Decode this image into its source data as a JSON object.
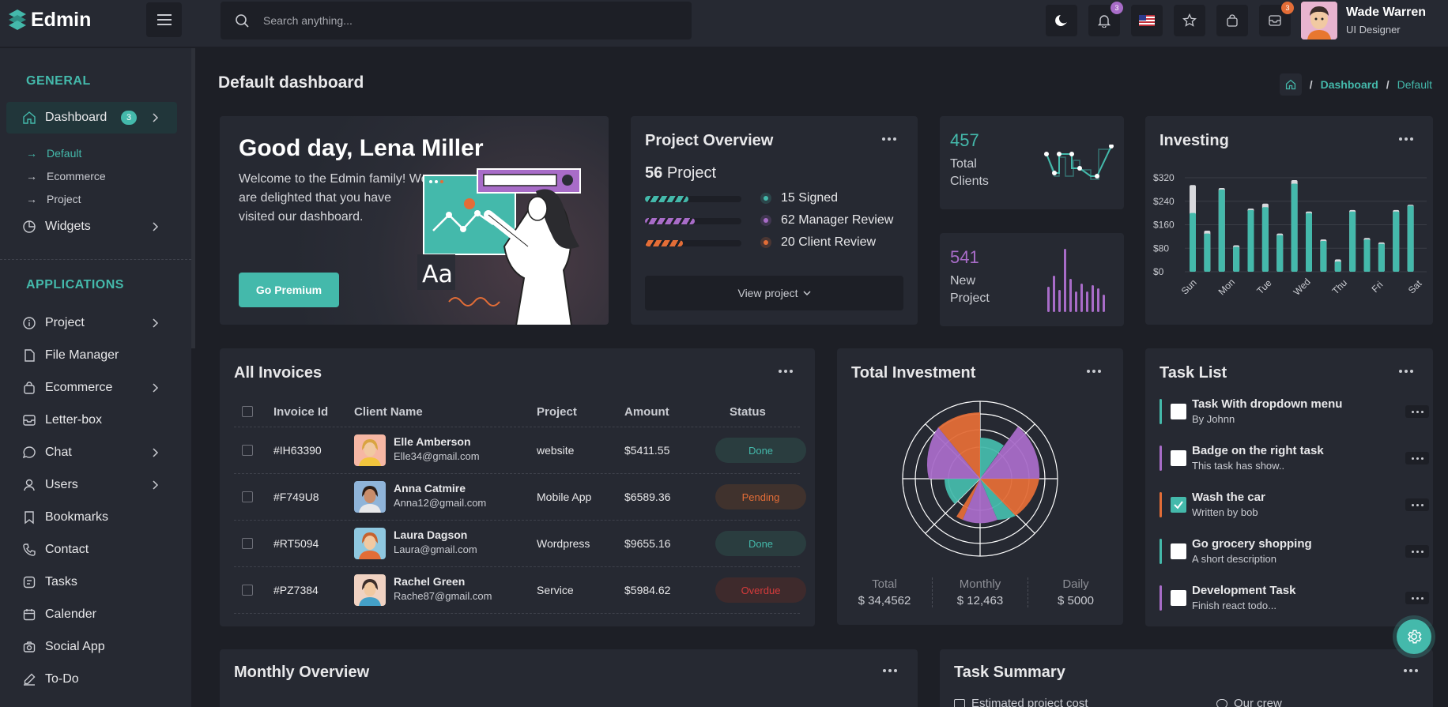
{
  "app": {
    "name": "Edmin"
  },
  "search": {
    "placeholder": "Search anything..."
  },
  "header": {
    "notif_count": "3",
    "mail_count": "3"
  },
  "user": {
    "name": "Wade Warren",
    "role": "UI Designer"
  },
  "sidebar": {
    "general": "GENERAL",
    "applications": "APPLICATIONS",
    "dashboard": {
      "label": "Dashboard",
      "badge": "3"
    },
    "sub": [
      "Default",
      "Ecommerce",
      "Project"
    ],
    "widgets": "Widgets",
    "apps": [
      {
        "label": "Project",
        "icon": "info-circle-icon",
        "chev": true
      },
      {
        "label": "File Manager",
        "icon": "file-icon",
        "chev": false
      },
      {
        "label": "Ecommerce",
        "icon": "shopping-bag-icon",
        "chev": true
      },
      {
        "label": "Letter-box",
        "icon": "mail-icon",
        "chev": false
      },
      {
        "label": "Chat",
        "icon": "chat-icon",
        "chev": true
      },
      {
        "label": "Users",
        "icon": "user-icon",
        "chev": true
      },
      {
        "label": "Bookmarks",
        "icon": "bookmark-icon",
        "chev": false
      },
      {
        "label": "Contact",
        "icon": "phone-icon",
        "chev": false
      },
      {
        "label": "Tasks",
        "icon": "tasks-icon",
        "chev": false
      },
      {
        "label": "Calender",
        "icon": "calendar-icon",
        "chev": false
      },
      {
        "label": "Social App",
        "icon": "camera-icon",
        "chev": false
      },
      {
        "label": "To-Do",
        "icon": "edit-icon",
        "chev": false
      }
    ]
  },
  "page": {
    "title": "Default dashboard",
    "crumb1": "Dashboard",
    "crumb2": "Default"
  },
  "welcome": {
    "title": "Good day, Lena Miller",
    "text": "Welcome to the Edmin family! We are delighted that you have visited our dashboard.",
    "button": "Go Premium"
  },
  "project_overview": {
    "title": "Project Overview",
    "count": "56",
    "count_label": "Project",
    "items": [
      {
        "label": "15 Signed",
        "color": "#44b9ab",
        "progress": 0.45
      },
      {
        "label": "62 Manager Review",
        "color": "#a86cc8",
        "progress": 0.52
      },
      {
        "label": "20 Client Review",
        "color": "#e36d37",
        "progress": 0.39
      }
    ],
    "button": "View project"
  },
  "stats": [
    {
      "value": "457",
      "label1": "Total",
      "label2": "Clients",
      "color": "#44b9ab"
    },
    {
      "value": "541",
      "label1": "New",
      "label2": "Project",
      "color": "#a86cc8"
    }
  ],
  "investing": {
    "title": "Investing",
    "chart_data": {
      "type": "bar",
      "ylim": [
        0,
        320
      ],
      "yticks": [
        "$0",
        "$80",
        "$160",
        "$240",
        "$320"
      ],
      "xticks": [
        "Sun",
        "Mon",
        "Tue",
        "Wed",
        "Thu",
        "Fri",
        "Sat"
      ],
      "series": [
        {
          "color": "#44b9ab",
          "values": [
            200,
            130,
            280,
            85,
            210,
            220,
            125,
            300,
            200,
            105,
            35,
            205,
            110,
            95,
            205,
            225
          ]
        },
        {
          "color": "#d8d9dd",
          "values": [
            295,
            140,
            285,
            90,
            215,
            232,
            130,
            312,
            205,
            110,
            42,
            210,
            115,
            100,
            210,
            228
          ]
        }
      ]
    }
  },
  "invoices": {
    "title": "All Invoices",
    "columns": [
      "Invoice Id",
      "Client Name",
      "Project",
      "Amount",
      "Status"
    ],
    "rows": [
      {
        "id": "#IH63390",
        "name": "Elle Amberson",
        "email": "Elle34@gmail.com",
        "project": "website",
        "amount": "$5411.55",
        "status": "Done"
      },
      {
        "id": "#F749U8",
        "name": "Anna Catmire",
        "email": "Anna12@gmail.com",
        "project": "Mobile App",
        "amount": "$6589.36",
        "status": "Pending"
      },
      {
        "id": "#RT5094",
        "name": "Laura Dagson",
        "email": "Laura@gmail.com",
        "project": "Wordpress",
        "amount": "$9655.16",
        "status": "Done"
      },
      {
        "id": "#PZ7384",
        "name": "Rachel Green",
        "email": "Rache87@gmail.com",
        "project": "Service",
        "amount": "$5984.62",
        "status": "Overdue"
      }
    ]
  },
  "total_investment": {
    "title": "Total Investment",
    "total_label": "Total",
    "total_value": "$ 34,4562",
    "monthly_label": "Monthly",
    "monthly_value": "$ 12,463",
    "daily_label": "Daily",
    "daily_value": "$ 5000"
  },
  "task_list": {
    "title": "Task List",
    "items": [
      {
        "title": "Task With dropdown menu",
        "sub": "By Johnn",
        "color": "#44b9ab",
        "checked": false
      },
      {
        "title": "Badge on the right task",
        "sub": "This task has show..",
        "color": "#a86cc8",
        "checked": false
      },
      {
        "title": "Wash the car",
        "sub": "Written by bob",
        "color": "#e36d37",
        "checked": true
      },
      {
        "title": "Go grocery shopping",
        "sub": "A short description",
        "color": "#44b9ab",
        "checked": false
      },
      {
        "title": "Development Task",
        "sub": "Finish react todo...",
        "color": "#a86cc8",
        "checked": false
      }
    ]
  },
  "monthly_overview": {
    "title": "Monthly Overview"
  },
  "task_summary": {
    "title": "Task Summary",
    "item1": "Estimated project cost",
    "item2": "Our crew"
  }
}
